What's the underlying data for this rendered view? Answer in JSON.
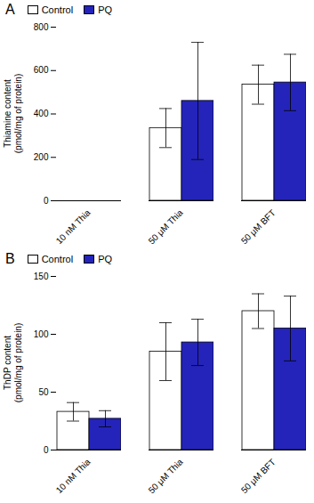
{
  "chart_data": [
    {
      "type": "bar",
      "title": "A",
      "ylabel": "Thiamine content\n(pmol/mg of protein)",
      "categories": [
        "10 nM Thia",
        "50 μM Thia",
        "50 μM BFT"
      ],
      "series": [
        {
          "name": "Control",
          "color": "#ffffff",
          "values": [
            0,
            335,
            535
          ],
          "errors": [
            0,
            90,
            90
          ]
        },
        {
          "name": "PQ",
          "color": "#2424bb",
          "values": [
            0,
            460,
            545
          ],
          "errors": [
            0,
            270,
            130
          ]
        }
      ],
      "ylim": [
        0,
        800
      ],
      "yticks": [
        0,
        200,
        400,
        600,
        800
      ],
      "grid": false,
      "legend": "upper left"
    },
    {
      "type": "bar",
      "title": "B",
      "ylabel": "ThDP content\n(pmol/mg of protein)",
      "categories": [
        "10 nM Thia",
        "50 μM Thia",
        "50 μM BFT"
      ],
      "series": [
        {
          "name": "Control",
          "color": "#ffffff",
          "values": [
            33,
            85,
            120
          ],
          "errors": [
            8,
            25,
            15
          ]
        },
        {
          "name": "PQ",
          "color": "#2424bb",
          "values": [
            27,
            93,
            105
          ],
          "errors": [
            7,
            20,
            28
          ]
        }
      ],
      "ylim": [
        0,
        150
      ],
      "yticks": [
        0,
        50,
        100,
        150
      ],
      "grid": false,
      "legend": "upper left"
    }
  ]
}
